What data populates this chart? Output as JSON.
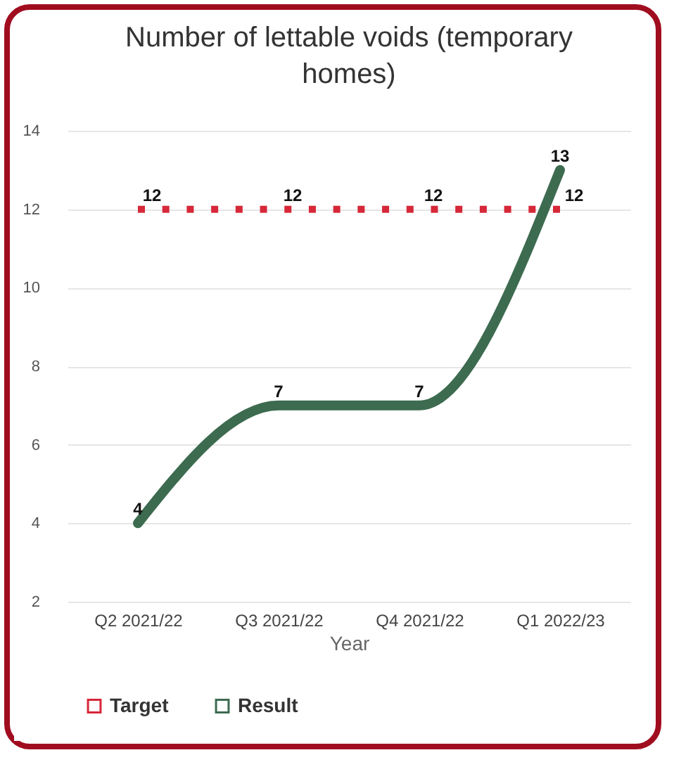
{
  "chart_data": {
    "type": "line",
    "title": "Number of lettable voids (temporary homes)",
    "xlabel": "Year",
    "categories": [
      "Q2 2021/22",
      "Q3 2021/22",
      "Q4 2021/22",
      "Q1 2022/23"
    ],
    "series": [
      {
        "name": "Target",
        "color": "#d62839",
        "values": [
          12,
          12,
          12,
          12
        ],
        "line_style": "dotted"
      },
      {
        "name": "Result",
        "color": "#3d6b50",
        "values": [
          4,
          7,
          7,
          13
        ],
        "line_style": "solid"
      }
    ],
    "ylim": [
      2,
      14
    ],
    "yticks": [
      2,
      4,
      6,
      8,
      10,
      12,
      14
    ],
    "grid": "y",
    "legend": "bottom",
    "data_labels": true
  }
}
